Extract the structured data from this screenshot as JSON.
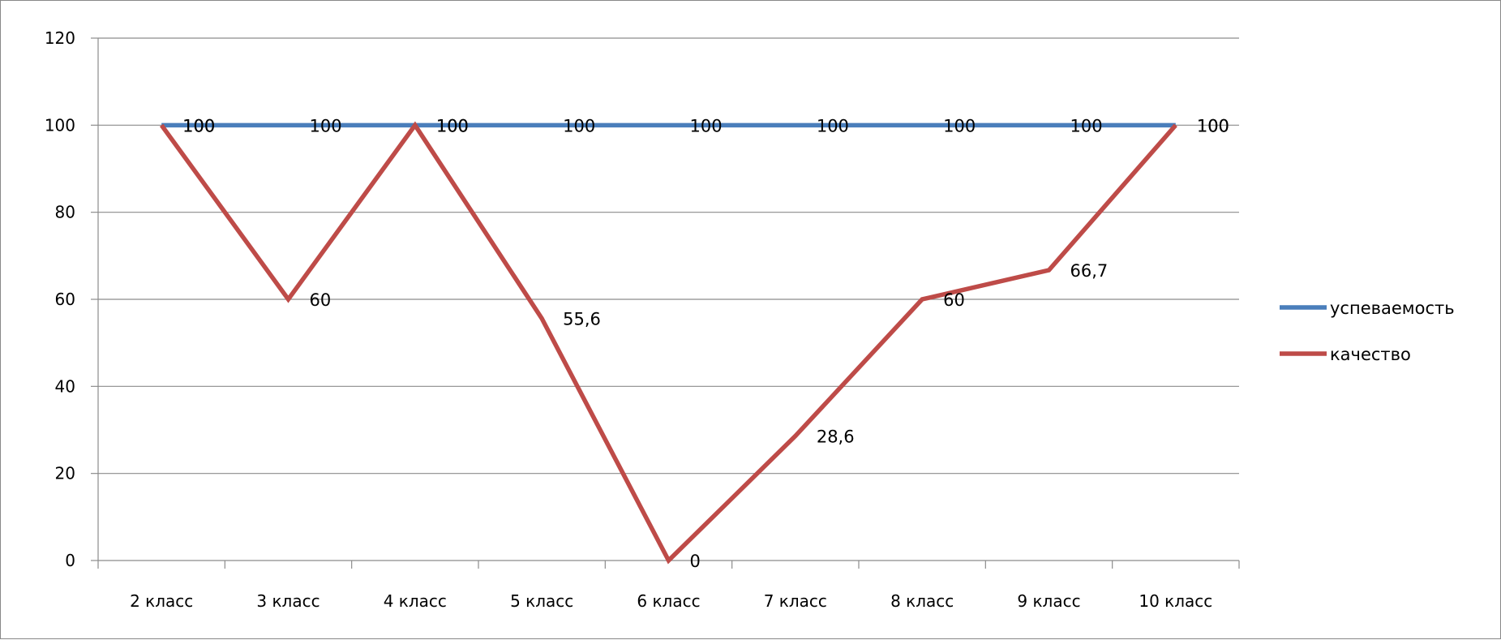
{
  "chart_data": {
    "type": "line",
    "categories": [
      "2 класс",
      "3 класс",
      "4 класс",
      "5 класс",
      "6 класс",
      "7 класс",
      "8 класс",
      "9 класс",
      "10 класс"
    ],
    "series": [
      {
        "name": "успеваемость",
        "color": "#4a7ebb",
        "values": [
          100,
          100,
          100,
          100,
          100,
          100,
          100,
          100,
          100
        ],
        "labels": [
          "100",
          "100",
          "100",
          "100",
          "100",
          "100",
          "100",
          "100",
          "100"
        ]
      },
      {
        "name": "качество",
        "color": "#be4b48",
        "values": [
          100,
          60,
          100,
          55.6,
          0,
          28.6,
          60,
          66.7,
          100
        ],
        "labels": [
          "100",
          "60",
          "100",
          "55,6",
          "0",
          "28,6",
          "60",
          "66,7",
          "100"
        ]
      }
    ],
    "ylim": [
      0,
      120
    ],
    "yticks": [
      0,
      20,
      40,
      60,
      80,
      100,
      120
    ],
    "title": "",
    "xlabel": "",
    "ylabel": "",
    "grid": true,
    "legend_position": "right"
  }
}
